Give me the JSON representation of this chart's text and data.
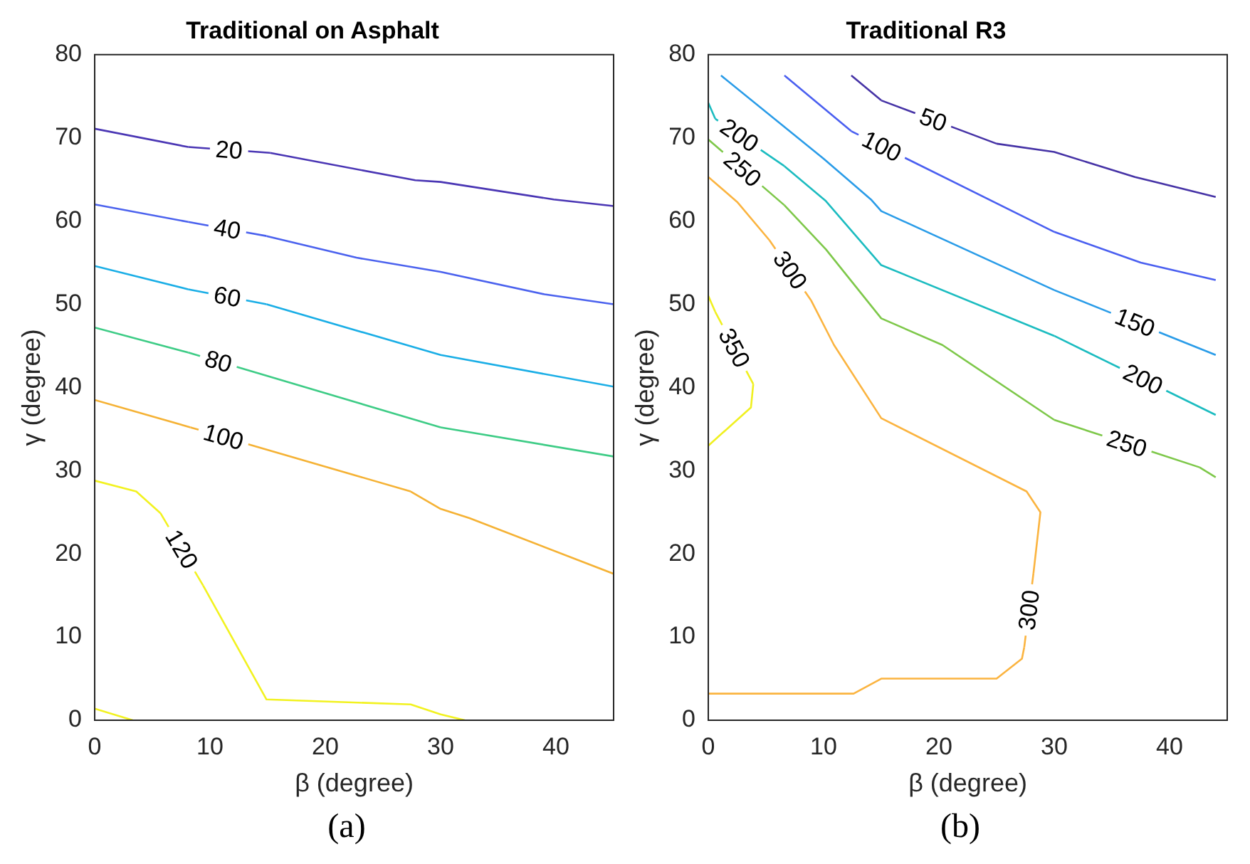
{
  "chart_data": [
    {
      "type": "line",
      "title": "Traditional on Asphalt",
      "xlabel": "β (degree)",
      "ylabel": "γ (degree)",
      "annotations": [
        "(a)"
      ],
      "xlim": [
        0,
        45
      ],
      "xticks": [
        0,
        10,
        20,
        30,
        40
      ],
      "ylim": [
        0,
        80
      ],
      "yticks": [
        0,
        10,
        20,
        30,
        40,
        50,
        60,
        70,
        80
      ],
      "marker": "none",
      "series": [
        {
          "name": "20",
          "color": "#4a36b4",
          "x": [
            0,
            8.1,
            15.2,
            27.8,
            30,
            39.8,
            45
          ],
          "values": [
            71.1,
            68.9,
            68.2,
            64.9,
            64.7,
            62.6,
            61.8
          ]
        },
        {
          "name": "40",
          "color": "#4b62ee",
          "x": [
            0,
            8.1,
            14.9,
            22.7,
            30,
            39,
            45
          ],
          "values": [
            62,
            59.9,
            58.2,
            55.6,
            53.9,
            51.2,
            50
          ]
        },
        {
          "name": "60",
          "color": "#1aaee6",
          "x": [
            0,
            8.1,
            14.9,
            30,
            45
          ],
          "values": [
            54.6,
            51.8,
            50,
            43.9,
            40.1
          ]
        },
        {
          "name": "80",
          "color": "#3ecc86",
          "x": [
            0,
            8.1,
            30,
            45
          ],
          "values": [
            47.2,
            44.2,
            35.2,
            31.7
          ]
        },
        {
          "name": "100",
          "color": "#f5b235",
          "x": [
            0,
            8.3,
            27.4,
            30,
            32.5,
            45
          ],
          "values": [
            38.5,
            35.2,
            27.5,
            25.4,
            24.3,
            17.6
          ]
        },
        {
          "name": "120",
          "color": "#f2f220",
          "x": [
            0,
            3.6,
            5.7,
            9.4,
            14.9,
            27.4,
            30,
            32.1
          ],
          "values": [
            28.8,
            27.5,
            24.9,
            16.2,
            2.5,
            1.9,
            0.7,
            0
          ]
        },
        {
          "color": "#f2f220",
          "x": [
            0,
            3.3
          ],
          "values": [
            1.4,
            0
          ]
        }
      ]
    },
    {
      "type": "line",
      "title": "Traditional R3",
      "xlabel": "β (degree)",
      "ylabel": "γ (degree)",
      "annotations": [
        "(b)"
      ],
      "xlim": [
        0,
        45
      ],
      "xticks": [
        0,
        10,
        20,
        30,
        40
      ],
      "ylim": [
        0,
        80
      ],
      "yticks": [
        0,
        10,
        20,
        30,
        40,
        50,
        60,
        70,
        80
      ],
      "marker": "none",
      "series": [
        {
          "name": "50",
          "color": "#4633a6",
          "x": [
            12.4,
            15,
            25,
            30,
            37,
            44
          ],
          "values": [
            77.5,
            74.5,
            69.3,
            68.3,
            65.3,
            62.9
          ]
        },
        {
          "name": "100",
          "color": "#4a5ff0",
          "x": [
            6.6,
            12.4,
            30,
            37.5,
            44
          ],
          "values": [
            77.5,
            70.8,
            58.7,
            55,
            52.9
          ]
        },
        {
          "name": "150",
          "color": "#2a9ce8",
          "x": [
            1.1,
            10,
            14.1,
            15,
            30,
            44
          ],
          "values": [
            77.5,
            67.5,
            62.6,
            61.2,
            51.7,
            43.9
          ]
        },
        {
          "name": "200",
          "color": "#1cbcc0",
          "x": [
            0,
            0.6,
            6.6,
            10.2,
            15,
            30,
            44
          ],
          "values": [
            74.2,
            72.3,
            66.6,
            62.4,
            54.7,
            46.2,
            36.7
          ]
        },
        {
          "name": "250",
          "color": "#7ec84a",
          "x": [
            0,
            6.6,
            10.2,
            15,
            20.3,
            30,
            42.6,
            44
          ],
          "values": [
            69.8,
            61.9,
            56.6,
            48.3,
            45.1,
            36.1,
            30.4,
            29.2
          ]
        },
        {
          "name": "300",
          "color": "#fbb440",
          "x": [
            0,
            2.5,
            5.3,
            8.9,
            10.9,
            15,
            27.6,
            28.8,
            28.2,
            27.4,
            27.2,
            25,
            15,
            12.6,
            0
          ],
          "values": [
            65.3,
            62.3,
            57.7,
            50.5,
            45.1,
            36.3,
            27.5,
            25,
            17.7,
            8.8,
            7.4,
            5,
            5,
            3.2,
            3.2
          ]
        },
        {
          "name": "350",
          "color": "#f0f020",
          "x": [
            0,
            0.6,
            3.9,
            3.7,
            0
          ],
          "values": [
            51,
            49.1,
            40.4,
            37.6,
            33
          ]
        }
      ]
    }
  ]
}
